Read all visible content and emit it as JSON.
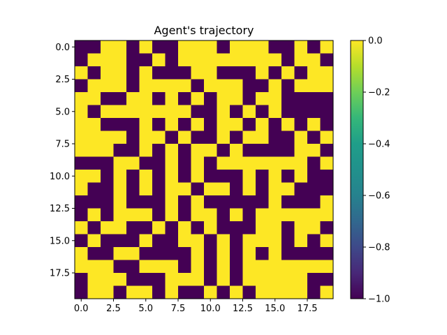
{
  "chart_data": {
    "type": "heatmap",
    "title": "Agent's trajectory",
    "xlabel": "",
    "ylabel": "",
    "colormap": "viridis",
    "colors": {
      "min": "#440154",
      "max": "#fde725"
    },
    "xlim": [
      -0.5,
      19.5
    ],
    "ylim": [
      19.5,
      -0.5
    ],
    "grid": false,
    "x_ticks": [
      0,
      2.5,
      5,
      7.5,
      10,
      12.5,
      15,
      17.5
    ],
    "x_tick_labels": [
      "0.0",
      "2.5",
      "5.0",
      "7.5",
      "10.0",
      "12.5",
      "15.0",
      "17.5"
    ],
    "y_ticks": [
      0,
      2.5,
      5,
      7.5,
      10,
      12.5,
      15,
      17.5
    ],
    "y_tick_labels": [
      "0.0",
      "2.5",
      "5.0",
      "7.5",
      "10.0",
      "12.5",
      "15.0",
      "17.5"
    ],
    "colorbar": {
      "range": [
        -1.0,
        0.0
      ],
      "ticks": [
        0,
        -0.2,
        -0.4,
        -0.6,
        -0.8,
        -1.0
      ],
      "tick_labels": [
        "0.0",
        "−0.2",
        "−0.4",
        "−0.6",
        "−0.8",
        "−1.0"
      ]
    },
    "values": [
      [
        -1,
        -1,
        0,
        0,
        -1,
        0,
        -1,
        -1,
        0,
        0,
        0,
        -1,
        0,
        0,
        0,
        -1,
        -1,
        0,
        -1,
        0
      ],
      [
        -1,
        0,
        0,
        0,
        -1,
        -1,
        0,
        -1,
        0,
        0,
        0,
        0,
        0,
        0,
        0,
        0,
        -1,
        0,
        0,
        -1
      ],
      [
        0,
        -1,
        0,
        0,
        -1,
        0,
        -1,
        -1,
        -1,
        0,
        0,
        -1,
        -1,
        -1,
        0,
        -1,
        0,
        -1,
        0,
        0
      ],
      [
        -1,
        0,
        0,
        0,
        -1,
        0,
        0,
        0,
        0,
        -1,
        0,
        0,
        0,
        -1,
        -1,
        0,
        -1,
        0,
        0,
        0
      ],
      [
        0,
        0,
        -1,
        -1,
        0,
        0,
        -1,
        0,
        -1,
        0,
        -1,
        0,
        0,
        -1,
        0,
        0,
        -1,
        -1,
        -1,
        -1
      ],
      [
        0,
        -1,
        0,
        0,
        0,
        0,
        0,
        0,
        0,
        -1,
        -1,
        0,
        -1,
        0,
        -1,
        0,
        -1,
        -1,
        -1,
        -1
      ],
      [
        0,
        0,
        -1,
        -1,
        -1,
        0,
        -1,
        0,
        -1,
        0,
        -1,
        0,
        0,
        -1,
        0,
        -1,
        0,
        -1,
        0,
        -1
      ],
      [
        0,
        0,
        0,
        0,
        -1,
        0,
        0,
        -1,
        0,
        -1,
        -1,
        0,
        -1,
        0,
        0,
        -1,
        -1,
        0,
        -1,
        0
      ],
      [
        0,
        0,
        0,
        -1,
        -1,
        0,
        -1,
        0,
        -1,
        0,
        0,
        -1,
        0,
        -1,
        -1,
        -1,
        -1,
        0,
        0,
        -1
      ],
      [
        -1,
        -1,
        -1,
        0,
        0,
        -1,
        -1,
        0,
        -1,
        0,
        -1,
        0,
        0,
        0,
        0,
        0,
        0,
        0,
        -1,
        0
      ],
      [
        0,
        0,
        -1,
        0,
        -1,
        0,
        -1,
        0,
        -1,
        0,
        -1,
        -1,
        -1,
        0,
        -1,
        0,
        -1,
        0,
        -1,
        -1
      ],
      [
        0,
        -1,
        -1,
        0,
        -1,
        0,
        -1,
        0,
        0,
        -1,
        0,
        0,
        -1,
        0,
        -1,
        0,
        0,
        -1,
        -1,
        -1
      ],
      [
        -1,
        -1,
        -1,
        0,
        -1,
        -1,
        -1,
        0,
        -1,
        0,
        -1,
        -1,
        -1,
        -1,
        -1,
        0,
        -1,
        -1,
        -1,
        0
      ],
      [
        -1,
        0,
        -1,
        0,
        0,
        0,
        -1,
        0,
        -1,
        0,
        0,
        -1,
        0,
        -1,
        0,
        0,
        0,
        0,
        0,
        0
      ],
      [
        0,
        -1,
        0,
        0,
        -1,
        -1,
        0,
        -1,
        0,
        -1,
        0,
        -1,
        -1,
        -1,
        0,
        0,
        -1,
        0,
        0,
        -1
      ],
      [
        -1,
        0,
        -1,
        -1,
        -1,
        0,
        -1,
        -1,
        0,
        0,
        -1,
        0,
        -1,
        0,
        0,
        0,
        -1,
        0,
        -1,
        0
      ],
      [
        0,
        -1,
        -1,
        0,
        0,
        -1,
        -1,
        -1,
        -1,
        0,
        -1,
        0,
        -1,
        0,
        -1,
        0,
        -1,
        -1,
        -1,
        -1
      ],
      [
        0,
        0,
        0,
        -1,
        -1,
        0,
        0,
        0,
        -1,
        0,
        -1,
        0,
        -1,
        0,
        0,
        0,
        0,
        0,
        0,
        0
      ],
      [
        -1,
        0,
        0,
        0,
        -1,
        -1,
        -1,
        0,
        0,
        0,
        -1,
        0,
        -1,
        0,
        0,
        0,
        0,
        0,
        -1,
        -1
      ],
      [
        -1,
        0,
        0,
        -1,
        0,
        0,
        -1,
        0,
        -1,
        -1,
        0,
        -1,
        0,
        -1,
        0,
        0,
        0,
        0,
        -1,
        0
      ]
    ]
  }
}
